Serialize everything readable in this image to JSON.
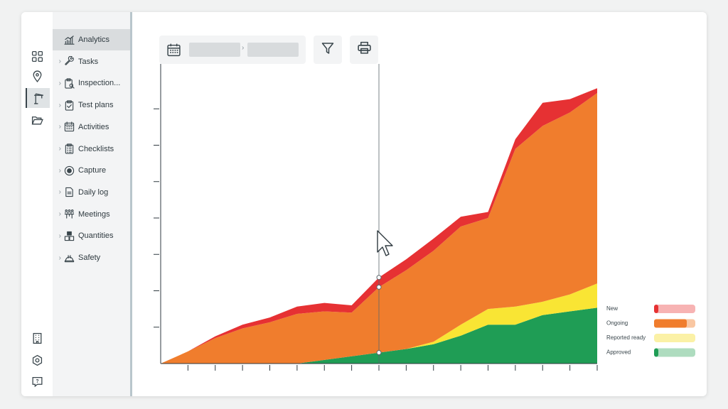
{
  "rail": {
    "top_icons": [
      "grid-icon",
      "location-pin-icon",
      "crane-icon",
      "folder-icon"
    ],
    "bottom_icons": [
      "building-icon",
      "settings-gear-icon",
      "help-feedback-icon"
    ],
    "active_index": 2
  },
  "nav": {
    "items": [
      {
        "label": "Analytics",
        "icon": "chart-icon",
        "active": true,
        "chevron": false
      },
      {
        "label": "Tasks",
        "icon": "wrench-icon",
        "active": false,
        "chevron": true
      },
      {
        "label": "Inspection...",
        "icon": "clipboard-search-icon",
        "active": false,
        "chevron": true
      },
      {
        "label": "Test plans",
        "icon": "clipboard-check-icon",
        "active": false,
        "chevron": true
      },
      {
        "label": "Activities",
        "icon": "calendar-grid-icon",
        "active": false,
        "chevron": true
      },
      {
        "label": "Checklists",
        "icon": "checklist-icon",
        "active": false,
        "chevron": true
      },
      {
        "label": "Capture",
        "icon": "capture-record-icon",
        "active": false,
        "chevron": true
      },
      {
        "label": "Daily log",
        "icon": "document-icon",
        "active": false,
        "chevron": true
      },
      {
        "label": "Meetings",
        "icon": "meeting-people-icon",
        "active": false,
        "chevron": true
      },
      {
        "label": "Quantities",
        "icon": "stacked-boxes-icon",
        "active": false,
        "chevron": true
      },
      {
        "label": "Safety",
        "icon": "hard-hat-icon",
        "active": false,
        "chevron": true
      }
    ]
  },
  "toolbar": {
    "date_start": "",
    "date_end": "",
    "calendar_icon": "calendar-icon",
    "filter_icon": "filter-icon",
    "print_icon": "printer-icon"
  },
  "chart_data": {
    "type": "area",
    "stacked": true,
    "x": [
      0,
      1,
      2,
      3,
      4,
      5,
      6,
      7,
      8,
      9,
      10,
      11,
      12,
      13,
      14,
      15,
      16
    ],
    "series": [
      {
        "name": "Approved",
        "color": "#1f9d55",
        "values": [
          0,
          0,
          0,
          0,
          0,
          0,
          0.3,
          0.6,
          0.9,
          1.2,
          1.6,
          2.3,
          3.2,
          3.2,
          4.0,
          4.3,
          4.6
        ]
      },
      {
        "name": "Reported ready",
        "color": "#f9e534",
        "values": [
          0,
          0,
          0,
          0,
          0,
          0,
          0,
          0,
          0,
          0,
          0.2,
          0.9,
          1.3,
          1.5,
          1.1,
          1.4,
          2.0
        ]
      },
      {
        "name": "Ongoing",
        "color": "#f07d2d",
        "values": [
          0,
          1.0,
          2.1,
          2.9,
          3.4,
          4.1,
          4.0,
          3.6,
          5.4,
          6.5,
          7.5,
          8.1,
          7.5,
          13.0,
          14.5,
          15.0,
          15.7
        ]
      },
      {
        "name": "New",
        "color": "#e63133",
        "values": [
          0,
          0,
          0.15,
          0.3,
          0.4,
          0.6,
          0.7,
          0.6,
          0.8,
          0.9,
          1.0,
          0.8,
          0.5,
          0.8,
          1.9,
          1.1,
          0.4
        ]
      }
    ],
    "ylim": [
      0,
      24
    ],
    "y_ticks": [
      3,
      6,
      9,
      12,
      15,
      18,
      21
    ],
    "x_ticks": 16,
    "cursor_index": 8,
    "grid": false,
    "legend": "right",
    "legend_entries": [
      {
        "label": "New",
        "color": "#e63133",
        "light": "#f7b3b3"
      },
      {
        "label": "Ongoing",
        "color": "#f07d2d",
        "light": "#f9c7a2"
      },
      {
        "label": "Reported ready",
        "color": "#f9e534",
        "light": "#fbf1a6"
      },
      {
        "label": "Approved",
        "color": "#1f9d55",
        "light": "#aedcbf"
      }
    ]
  }
}
